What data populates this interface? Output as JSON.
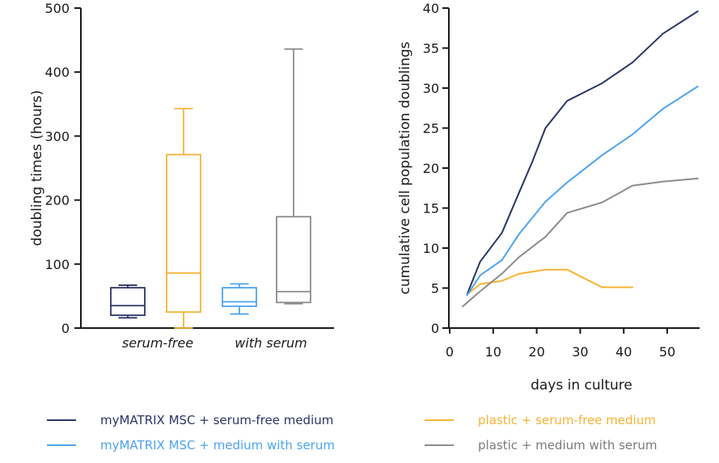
{
  "colors": {
    "mymatrix_serum_free": "#2b3467",
    "mymatrix_with_serum": "#4da3f0",
    "plastic_serum_free": "#f7b335",
    "plastic_with_serum": "#8c8c8c",
    "axis": "#1a1a1a"
  },
  "legend": [
    {
      "label": "myMATRIX MSC + serum-free medium",
      "color": "#2b3467"
    },
    {
      "label": "plastic + serum-free medium",
      "color": "#f7b335"
    },
    {
      "label": "myMATRIX MSC + medium with serum",
      "color": "#4da3f0"
    },
    {
      "label": "plastic + medium with serum",
      "color": "#8c8c8c"
    }
  ],
  "chart_data": [
    {
      "type": "box",
      "ylabel": "doubling times (hours)",
      "ylim": [
        0,
        500
      ],
      "yticks": [
        0,
        100,
        200,
        300,
        400,
        500
      ],
      "categories": [
        "serum-free",
        "with serum"
      ],
      "boxes": [
        {
          "group": "serum-free",
          "series": "myMATRIX MSC + serum-free medium",
          "color": "#2b3467",
          "min": 16,
          "q1": 20,
          "median": 35,
          "q3": 63,
          "max": 67
        },
        {
          "group": "serum-free",
          "series": "plastic + serum-free medium",
          "color": "#f7b335",
          "min": 0,
          "q1": 25,
          "median": 86,
          "q3": 271,
          "max": 343
        },
        {
          "group": "with serum",
          "series": "myMATRIX MSC + medium with serum",
          "color": "#4da3f0",
          "min": 22,
          "q1": 34,
          "median": 41,
          "q3": 63,
          "max": 69
        },
        {
          "group": "with serum",
          "series": "plastic + medium with serum",
          "color": "#8c8c8c",
          "min": 38,
          "q1": 40,
          "median": 57,
          "q3": 174,
          "max": 436
        }
      ]
    },
    {
      "type": "line",
      "xlabel": "days in culture",
      "ylabel": "cumulative cell population doublings",
      "xlim": [
        0,
        57
      ],
      "ylim": [
        0,
        40
      ],
      "xticks": [
        0,
        10,
        20,
        30,
        40,
        50
      ],
      "yticks": [
        0,
        5,
        10,
        15,
        20,
        25,
        30,
        35,
        40
      ],
      "series": [
        {
          "name": "myMATRIX MSC + serum-free medium",
          "color": "#2b3467",
          "x": [
            4,
            7,
            12,
            16,
            19,
            22,
            27,
            35,
            42,
            49,
            57
          ],
          "y": [
            4.2,
            8.3,
            11.9,
            17.0,
            20.8,
            25.0,
            28.4,
            30.6,
            33.2,
            36.8,
            39.6
          ]
        },
        {
          "name": "plastic + serum-free medium",
          "color": "#f7b335",
          "x": [
            4,
            7,
            12,
            16,
            22,
            27,
            35,
            42
          ],
          "y": [
            4.2,
            5.5,
            5.9,
            6.8,
            7.3,
            7.3,
            5.1,
            5.1
          ]
        },
        {
          "name": "myMATRIX MSC + medium with serum",
          "color": "#4da3f0",
          "x": [
            4,
            7,
            12,
            16,
            22,
            27,
            35,
            42,
            49,
            57
          ],
          "y": [
            4.1,
            6.6,
            8.5,
            11.8,
            15.8,
            18.2,
            21.6,
            24.2,
            27.4,
            30.2
          ]
        },
        {
          "name": "plastic + medium with serum",
          "color": "#8c8c8c",
          "x": [
            3,
            7,
            12,
            16,
            22,
            27,
            35,
            42,
            49,
            57
          ],
          "y": [
            2.7,
            4.6,
            6.8,
            8.9,
            11.4,
            14.4,
            15.7,
            17.8,
            18.3,
            18.7
          ]
        }
      ]
    }
  ]
}
